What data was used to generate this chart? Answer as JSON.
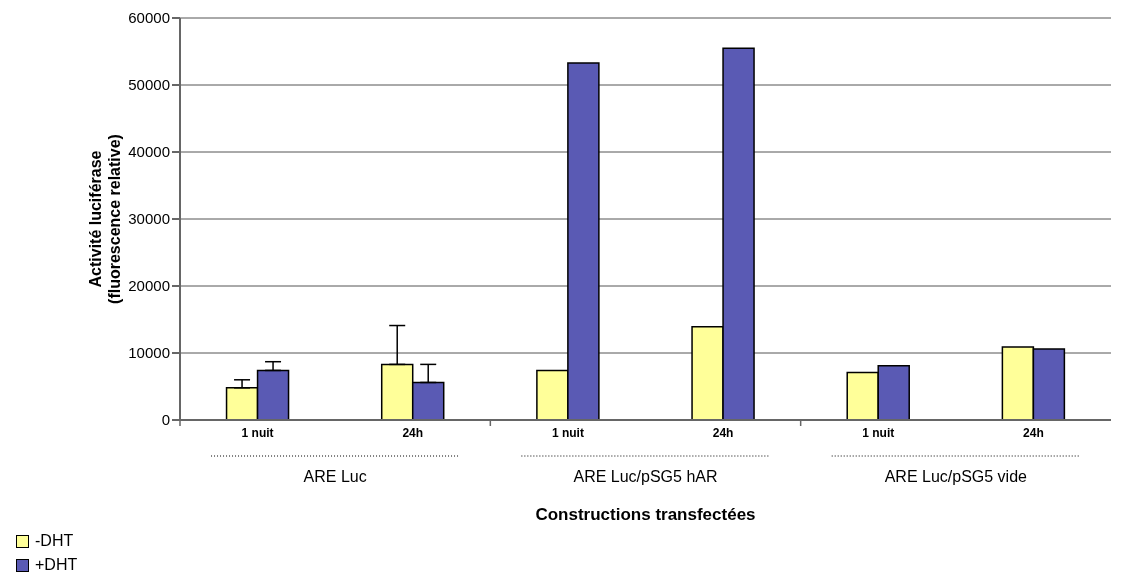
{
  "chart_data": {
    "type": "bar",
    "xlabel": "Constructions transfectées",
    "ylabel": "Activité luciférase\n(fluorescence relative)",
    "categories": [
      "1 nuit",
      "24h",
      "1 nuit",
      "24h",
      "1 nuit",
      "24h"
    ],
    "annotations": [
      "ARE Luc",
      "ARE Luc/pSG5 hAR",
      "ARE Luc/pSG5 vide"
    ],
    "series": [
      {
        "name": "-DHT",
        "color": "#ffff99",
        "values": [
          4800,
          8300,
          7400,
          13900,
          7100,
          10900
        ],
        "errors": [
          [
            4800,
            6000
          ],
          [
            8300,
            14100
          ],
          null,
          null,
          null,
          null
        ]
      },
      {
        "name": "+DHT",
        "color": "#5a5ab4",
        "values": [
          7400,
          5600,
          53300,
          55500,
          8100,
          10600
        ],
        "errors": [
          [
            7400,
            8700
          ],
          [
            5600,
            8300
          ],
          null,
          null,
          null,
          null
        ]
      }
    ],
    "ylim": [
      0,
      60000
    ],
    "yticks": [
      0,
      10000,
      20000,
      30000,
      40000,
      50000,
      60000
    ],
    "grid": "y",
    "legend": "bottom left"
  }
}
